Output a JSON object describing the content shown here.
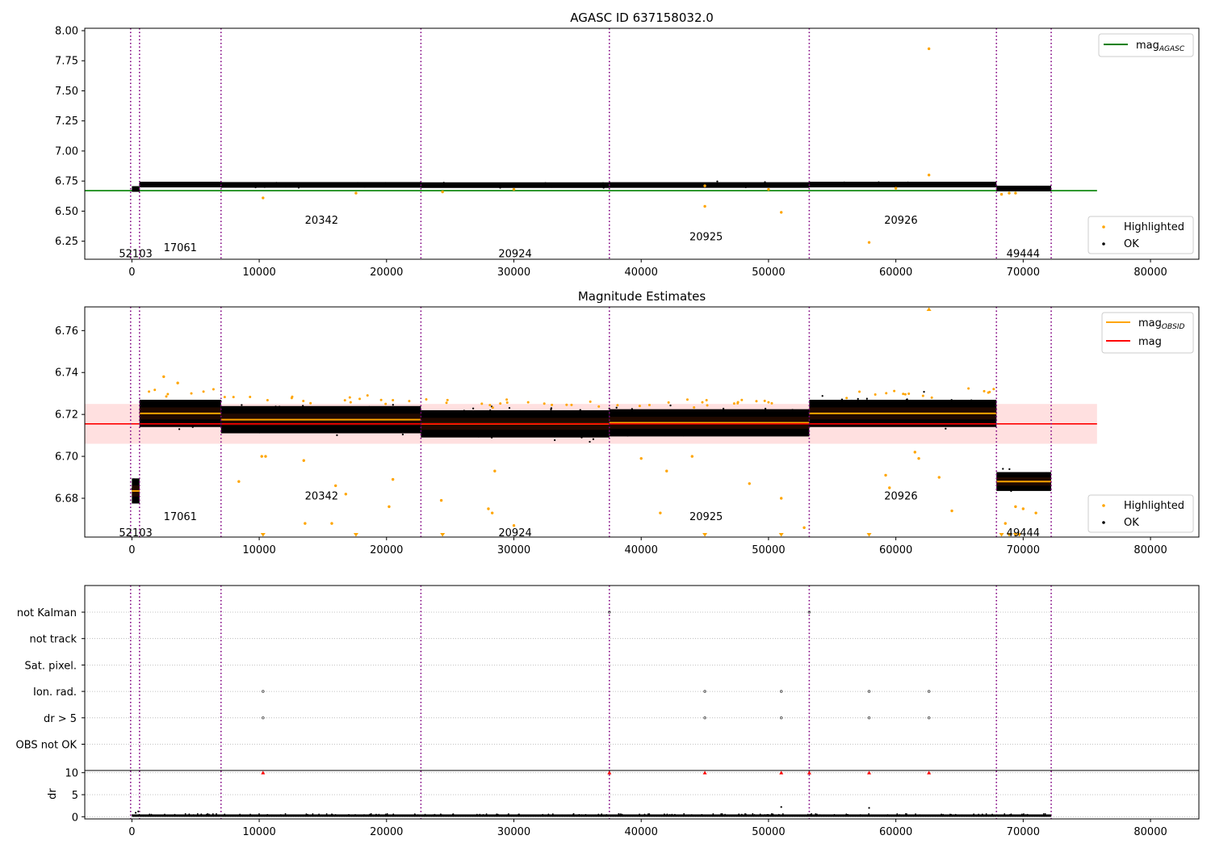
{
  "chart_data": [
    {
      "type": "scatter",
      "title": "AGASC ID 637158032.0",
      "xlim": [
        -3700,
        83800
      ],
      "ylim": [
        6.1,
        8.02
      ],
      "xticks": [
        0,
        10000,
        20000,
        30000,
        40000,
        50000,
        60000,
        70000,
        80000
      ],
      "yticks": [
        "8.00",
        "7.75",
        "7.50",
        "7.25",
        "7.00",
        "6.75",
        "6.50",
        "6.25"
      ],
      "vlines_x": [
        -100,
        600,
        7000,
        22700,
        37500,
        53200,
        67900,
        72200
      ],
      "segments": [
        {
          "x0": 0,
          "x1": 600,
          "mag": 6.684
        },
        {
          "x0": 600,
          "x1": 7000,
          "mag": 6.721
        },
        {
          "x0": 7000,
          "x1": 22700,
          "mag": 6.718
        },
        {
          "x0": 22700,
          "x1": 37500,
          "mag": 6.716
        },
        {
          "x0": 37500,
          "x1": 53200,
          "mag": 6.717
        },
        {
          "x0": 53200,
          "x1": 67900,
          "mag": 6.721
        },
        {
          "x0": 67900,
          "x1": 72200,
          "mag": 6.688
        }
      ],
      "series": [
        {
          "name": "mag_AGASC",
          "y": 6.67,
          "x_range": [
            -3700,
            75800
          ],
          "color": "#008000"
        },
        {
          "name": "Highlighted",
          "color": "#ffa500",
          "points": [
            [
              62600,
              7.85
            ],
            [
              62600,
              6.8
            ],
            [
              45000,
              6.54
            ],
            [
              51000,
              6.49
            ],
            [
              57900,
              6.24
            ],
            [
              10300,
              6.61
            ],
            [
              17600,
              6.65
            ],
            [
              24400,
              6.66
            ],
            [
              68300,
              6.64
            ],
            [
              68900,
              6.65
            ],
            [
              69400,
              6.65
            ],
            [
              60000,
              6.69
            ],
            [
              30000,
              6.68
            ],
            [
              45000,
              6.71
            ],
            [
              50000,
              6.68
            ]
          ]
        },
        {
          "name": "OK",
          "color": "#000000"
        }
      ],
      "obsid_labels": [
        {
          "text": "52103",
          "x": 300,
          "y": 6.15
        },
        {
          "text": "17061",
          "x": 3800,
          "y": 6.2
        },
        {
          "text": "20342",
          "x": 14900,
          "y": 6.43
        },
        {
          "text": "20924",
          "x": 30100,
          "y": 6.15
        },
        {
          "text": "20925",
          "x": 45100,
          "y": 6.29
        },
        {
          "text": "20926",
          "x": 60400,
          "y": 6.43
        },
        {
          "text": "49444",
          "x": 70000,
          "y": 6.15
        }
      ],
      "legend_top": [
        "mag",
        "AGASC"
      ],
      "legend_bottom": [
        "Highlighted",
        "OK"
      ]
    },
    {
      "type": "scatter",
      "title": "Magnitude Estimates",
      "xlim": [
        -3700,
        83800
      ],
      "ylim": [
        6.6615,
        6.7713
      ],
      "xticks": [
        0,
        10000,
        20000,
        30000,
        40000,
        50000,
        60000,
        70000,
        80000
      ],
      "yticks": [
        "6.76",
        "6.74",
        "6.72",
        "6.70",
        "6.68"
      ],
      "mag": 6.7155,
      "mag_band": [
        6.706,
        6.725
      ],
      "segments": [
        {
          "x0": 0,
          "x1": 600,
          "mag": 6.6835,
          "spread": 0.006
        },
        {
          "x0": 600,
          "x1": 7000,
          "mag": 6.7205,
          "spread": 0.0065
        },
        {
          "x0": 7000,
          "x1": 22700,
          "mag": 6.7175,
          "spread": 0.0065
        },
        {
          "x0": 22700,
          "x1": 37500,
          "mag": 6.7155,
          "spread": 0.0065
        },
        {
          "x0": 37500,
          "x1": 53200,
          "mag": 6.716,
          "spread": 0.0065
        },
        {
          "x0": 53200,
          "x1": 67900,
          "mag": 6.7205,
          "spread": 0.0065
        },
        {
          "x0": 67900,
          "x1": 72200,
          "mag": 6.688,
          "spread": 0.0045
        }
      ],
      "series": [
        {
          "name": "mag_OBSID",
          "color": "#ffa500"
        },
        {
          "name": "mag",
          "color": "#ff0000"
        },
        {
          "name": "Highlighted",
          "color": "#ffa500",
          "points": [
            [
              10200,
              6.7
            ],
            [
              10500,
              6.7
            ],
            [
              8400,
              6.688
            ],
            [
              13500,
              6.698
            ],
            [
              16000,
              6.686
            ],
            [
              16800,
              6.682
            ],
            [
              15700,
              6.668
            ],
            [
              13600,
              6.668
            ],
            [
              20200,
              6.676
            ],
            [
              20500,
              6.689
            ],
            [
              24300,
              6.679
            ],
            [
              28000,
              6.675
            ],
            [
              28300,
              6.673
            ],
            [
              30000,
              6.667
            ],
            [
              28500,
              6.693
            ],
            [
              41500,
              6.673
            ],
            [
              42000,
              6.693
            ],
            [
              48500,
              6.687
            ],
            [
              51000,
              6.68
            ],
            [
              52800,
              6.666
            ],
            [
              59200,
              6.691
            ],
            [
              59500,
              6.685
            ],
            [
              61500,
              6.702
            ],
            [
              61800,
              6.699
            ],
            [
              63400,
              6.69
            ],
            [
              64400,
              6.674
            ],
            [
              68600,
              6.668
            ],
            [
              69400,
              6.676
            ],
            [
              70000,
              6.675
            ],
            [
              71000,
              6.673
            ],
            [
              2500,
              6.738
            ],
            [
              3600,
              6.735
            ],
            [
              40000,
              6.699
            ],
            [
              44000,
              6.7
            ]
          ]
        },
        {
          "name": "Highlighted (off-scale)",
          "color": "#ffa500",
          "markers": [
            [
              62600,
              "up"
            ],
            [
              10300,
              "down"
            ],
            [
              17600,
              "down"
            ],
            [
              24400,
              "down"
            ],
            [
              45000,
              "down"
            ],
            [
              51000,
              "down"
            ],
            [
              57900,
              "down"
            ],
            [
              68300,
              "down"
            ],
            [
              68900,
              "down"
            ],
            [
              69400,
              "down"
            ],
            [
              69700,
              "down"
            ]
          ]
        },
        {
          "name": "OK",
          "color": "#000000"
        }
      ],
      "obsid_labels": [
        {
          "text": "52103",
          "x": 300,
          "y": 6.6638
        },
        {
          "text": "17061",
          "x": 3800,
          "y": 6.6715
        },
        {
          "text": "20342",
          "x": 14900,
          "y": 6.6813
        },
        {
          "text": "20924",
          "x": 30100,
          "y": 6.6638
        },
        {
          "text": "20925",
          "x": 45100,
          "y": 6.6715
        },
        {
          "text": "20926",
          "x": 60400,
          "y": 6.6813
        },
        {
          "text": "49444",
          "x": 70000,
          "y": 6.6638
        }
      ],
      "legend_top": [
        "mag",
        "OBSID",
        "mag"
      ],
      "legend_bottom": [
        "Highlighted",
        "OK"
      ]
    },
    {
      "type": "scatter",
      "title": "",
      "xlim": [
        -3700,
        83800
      ],
      "flag_rows": [
        "not Kalman",
        "not track",
        "Sat. pixel.",
        "Ion. rad.",
        "dr > 5",
        "OBS not OK"
      ],
      "flags": [
        {
          "row": "not Kalman",
          "x": [
            37500,
            53200
          ]
        },
        {
          "row": "Ion. rad.",
          "x": [
            10300,
            45000,
            51000,
            57900,
            62600
          ]
        },
        {
          "row": "dr > 5",
          "x": [
            10300,
            45000,
            51000,
            57900,
            62600
          ]
        }
      ],
      "dr_label": "dr",
      "dr_ylim": [
        -0.5,
        10.5
      ],
      "dr_yticks": [
        "10",
        "5",
        "0"
      ],
      "dr_clipped_x": [
        10300,
        37500,
        45000,
        51000,
        53200,
        57900,
        62600
      ],
      "dr_outliers": [
        [
          51000,
          2.2
        ],
        [
          57900,
          2.0
        ],
        [
          500,
          1.2
        ],
        [
          300,
          0.9
        ]
      ],
      "xticks": [
        0,
        10000,
        20000,
        30000,
        40000,
        50000,
        60000,
        70000,
        80000
      ]
    }
  ]
}
